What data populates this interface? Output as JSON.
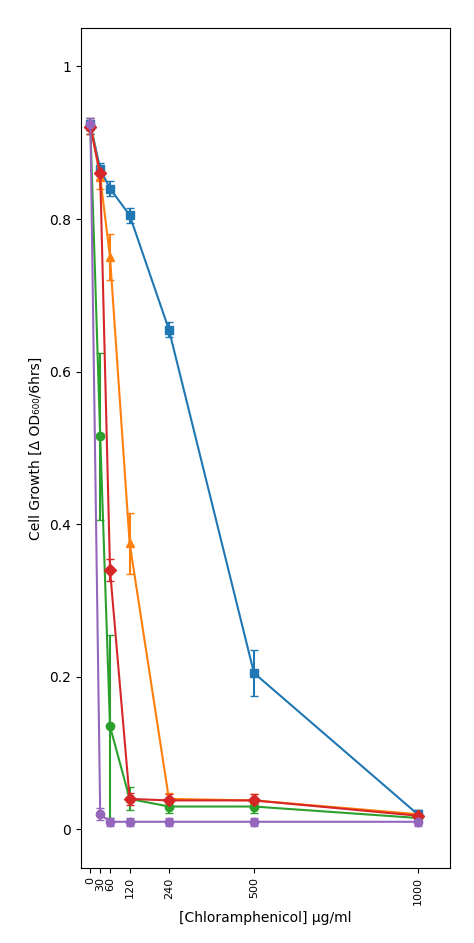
{
  "chart_data": {
    "type": "line",
    "xlabel": "[Chloramphenicol] μg/ml",
    "ylabel": "Cell Growth [Δ OD₆₀₀/6hrs]",
    "x": [
      0,
      30,
      60,
      120,
      240,
      500,
      1000
    ],
    "series": [
      {
        "values": [
          0.925,
          0.865,
          0.84,
          0.805,
          0.655,
          0.205,
          0.02
        ],
        "yerr": [
          0.008,
          0.008,
          0.01,
          0.01,
          0.01,
          0.03,
          0.005
        ],
        "marker": "square"
      },
      {
        "values": [
          0.925,
          0.855,
          0.75,
          0.375,
          0.04,
          0.038,
          0.02
        ],
        "yerr": [
          0.008,
          0.015,
          0.03,
          0.04,
          0.008,
          0.008,
          0.005
        ],
        "marker": "triangle"
      },
      {
        "values": [
          0.92,
          0.515,
          0.135,
          0.04,
          0.03,
          0.03,
          0.015
        ],
        "yerr": [
          0.008,
          0.11,
          0.12,
          0.015,
          0.008,
          0.008,
          0.005
        ],
        "marker": "circle"
      },
      {
        "values": [
          0.92,
          0.86,
          0.34,
          0.04,
          0.038,
          0.038,
          0.018
        ],
        "yerr": [
          0.008,
          0.008,
          0.015,
          0.008,
          0.008,
          0.008,
          0.005
        ],
        "marker": "diamond"
      },
      {
        "values": [
          0.925,
          0.02,
          0.01,
          0.01,
          0.01,
          0.01,
          0.01
        ],
        "yerr": [
          0.008,
          0.008,
          0.005,
          0.005,
          0.005,
          0.005,
          0.005
        ],
        "marker": "circle"
      }
    ],
    "xlim": [
      -30,
      1100
    ],
    "xticks": [
      0,
      30,
      60,
      120,
      240,
      500,
      1000
    ],
    "ylim": [
      -0.05,
      1.05
    ],
    "yticks": [
      0,
      0.2,
      0.4,
      0.6,
      0.8,
      1
    ],
    "grid": false
  }
}
